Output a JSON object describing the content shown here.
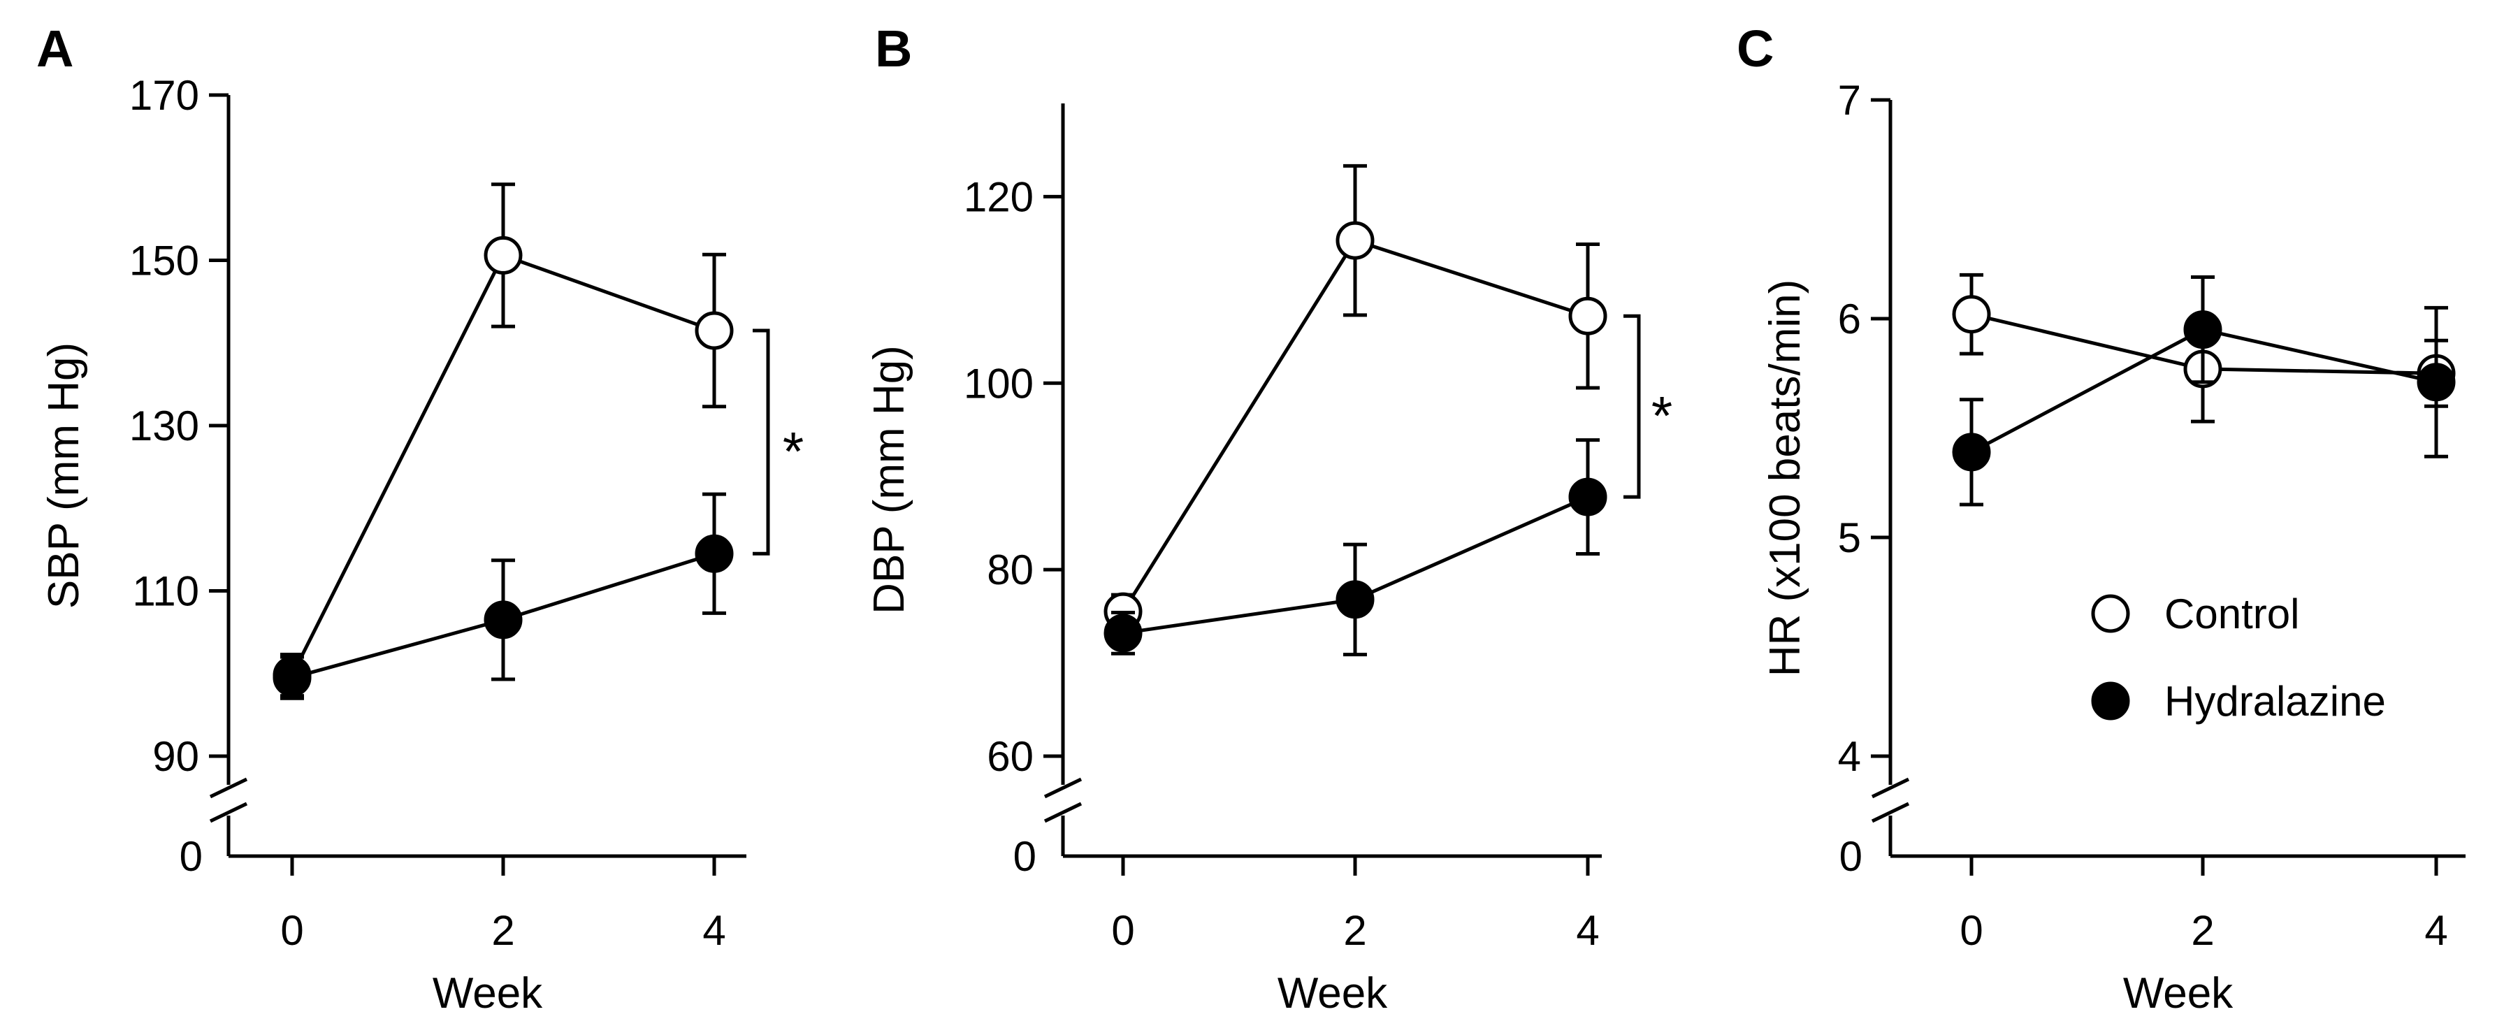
{
  "chart_data": [
    {
      "panel": "A",
      "type": "line",
      "xlabel": "Week",
      "ylabel": "SBP (mm Hg)",
      "x": [
        0,
        2,
        4
      ],
      "ylim": [
        90,
        170
      ],
      "yticks": [
        90,
        110,
        130,
        150,
        170
      ],
      "axis_break_label": "0",
      "series": [
        {
          "name": "Control",
          "marker": "open-circle",
          "values": [
            99.8,
            150.6,
            141.5
          ],
          "errors": [
            2.5,
            8.6,
            9.2
          ]
        },
        {
          "name": "Hydralazine",
          "marker": "filled-circle",
          "values": [
            99.5,
            106.5,
            114.5
          ],
          "errors": [
            2.5,
            7.2,
            7.2
          ]
        }
      ],
      "significance": {
        "label": "*",
        "x": 4,
        "from": 114.5,
        "to": 141.5
      }
    },
    {
      "panel": "B",
      "type": "line",
      "xlabel": "Week",
      "ylabel": "DBP (mm Hg)",
      "x": [
        0,
        2,
        4
      ],
      "ylim": [
        60,
        130
      ],
      "yticks": [
        60,
        80,
        100,
        120
      ],
      "axis_break_label": "0",
      "series": [
        {
          "name": "Control",
          "marker": "open-circle",
          "values": [
            75.5,
            115.3,
            107.2
          ],
          "errors": [
            1.8,
            8.0,
            7.7
          ]
        },
        {
          "name": "Hydralazine",
          "marker": "filled-circle",
          "values": [
            73.2,
            76.8,
            87.8
          ],
          "errors": [
            2.2,
            5.9,
            6.1
          ]
        }
      ],
      "significance": {
        "label": "*",
        "x": 4,
        "from": 87.8,
        "to": 107.2
      }
    },
    {
      "panel": "C",
      "type": "line",
      "xlabel": "Week",
      "ylabel": "HR (x100 beats/min)",
      "x": [
        0,
        2,
        4
      ],
      "ylim": [
        4,
        7
      ],
      "yticks": [
        4,
        5,
        6,
        7
      ],
      "axis_break_label": "0",
      "series": [
        {
          "name": "Control",
          "marker": "open-circle",
          "values": [
            6.02,
            5.77,
            5.75
          ],
          "errors": [
            0.18,
            0.24,
            0.15
          ]
        },
        {
          "name": "Hydralazine",
          "marker": "filled-circle",
          "values": [
            5.39,
            5.95,
            5.71
          ],
          "errors": [
            0.24,
            0.24,
            0.34
          ]
        }
      ],
      "legend": {
        "position": "bottom-right",
        "entries": [
          "Control",
          "Hydralazine"
        ]
      }
    }
  ]
}
